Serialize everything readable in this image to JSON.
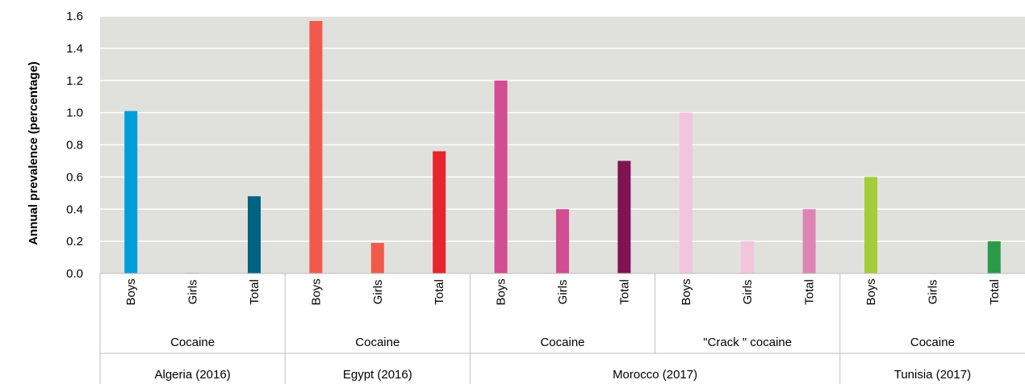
{
  "chart_data": {
    "type": "bar",
    "title": "",
    "ylabel": "Annual prevalence (percentage)",
    "xlabel": "",
    "ylim": [
      0,
      1.6
    ],
    "y_ticks": [
      "0.0",
      "0.2",
      "0.4",
      "0.6",
      "0.8",
      "1.0",
      "1.2",
      "1.4",
      "1.6"
    ],
    "grid": true,
    "legend": "none",
    "categories": [
      "Boys",
      "Girls",
      "Total",
      "Boys",
      "Girls",
      "Total",
      "Boys",
      "Girls",
      "Total",
      "Boys",
      "Girls",
      "Total",
      "Boys",
      "Girls",
      "Total"
    ],
    "values": [
      1.01,
      0.005,
      0.48,
      1.57,
      0.19,
      0.76,
      1.2,
      0.4,
      0.7,
      1.0,
      0.2,
      0.4,
      0.6,
      0.0,
      0.2
    ],
    "colors": [
      "#009fda",
      "#9fd0ea",
      "#006384",
      "#f15a4a",
      "#f15a4a",
      "#e8252d",
      "#d24d91",
      "#d24d91",
      "#7e1451",
      "#f2c5dc",
      "#f2c5dc",
      "#dd86b5",
      "#a4cd39",
      "#a4cd39",
      "#2a9a48"
    ],
    "drug_groups": [
      {
        "label": "Cocaine",
        "bars": [
          0,
          2
        ]
      },
      {
        "label": "Cocaine",
        "bars": [
          3,
          5
        ]
      },
      {
        "label": "Cocaine",
        "bars": [
          6,
          8
        ]
      },
      {
        "label": "\"Crack \" cocaine",
        "bars": [
          9,
          11
        ]
      },
      {
        "label": "Cocaine",
        "bars": [
          12,
          14
        ]
      }
    ],
    "countries": [
      {
        "label": "Algeria (2016)",
        "bars": [
          0,
          2
        ]
      },
      {
        "label": "Egypt (2016)",
        "bars": [
          3,
          5
        ]
      },
      {
        "label": "Morocco (2017)",
        "bars": [
          6,
          11
        ]
      },
      {
        "label": "Tunisia (2017)",
        "bars": [
          12,
          14
        ]
      }
    ],
    "plot_background": "#e0e0dc",
    "gridline_color": "#ffffff",
    "separator_color": "#bfbfbf"
  }
}
